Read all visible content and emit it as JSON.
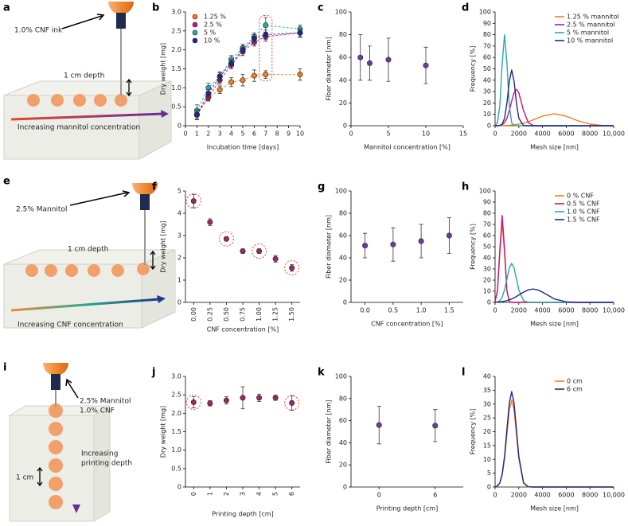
{
  "illustrations": [
    {
      "label": "a",
      "ink": "1.0% CNF ink",
      "depth": "1 cm depth",
      "gradient": "Increasing mannitol concentration"
    },
    {
      "label": "e",
      "ink": "2.5% Mannitol",
      "depth": "1 cm depth",
      "gradient": "Increasing CNF concentration"
    },
    {
      "label": "i",
      "ink": [
        "2.5% Mannitol",
        "1.0% CNF"
      ],
      "depth": "1 cm",
      "gradient": [
        "Increasing",
        "printing depth"
      ]
    }
  ],
  "chart_data": [
    {
      "label": "b",
      "type": "scatter",
      "x": [
        1,
        2,
        3,
        4,
        5,
        6,
        7,
        10
      ],
      "series": [
        {
          "name": "1.25 %",
          "color": "#f27c21",
          "values": [
            0.28,
            0.75,
            0.95,
            1.15,
            1.2,
            1.32,
            1.35,
            1.35
          ],
          "errors": [
            0.12,
            0.1,
            0.1,
            0.12,
            0.15,
            0.15,
            0.1,
            0.15
          ]
        },
        {
          "name": "2.5 %",
          "color": "#c4157b",
          "values": [
            0.3,
            0.75,
            1.2,
            1.6,
            1.95,
            2.2,
            2.35,
            2.45
          ],
          "errors": [
            0.12,
            0.08,
            0.1,
            0.1,
            0.1,
            0.1,
            0.12,
            0.12
          ]
        },
        {
          "name": "5 %",
          "color": "#2aa8a3",
          "values": [
            0.4,
            1.0,
            1.3,
            1.75,
            2.05,
            2.35,
            2.65,
            2.55
          ],
          "errors": [
            0.15,
            0.12,
            0.1,
            0.1,
            0.1,
            0.1,
            0.2,
            0.1
          ]
        },
        {
          "name": "10 %",
          "color": "#1f2a86",
          "values": [
            0.3,
            0.85,
            1.3,
            1.65,
            2.0,
            2.3,
            2.4,
            2.45
          ],
          "errors": [
            0.12,
            0.1,
            0.12,
            0.1,
            0.1,
            0.1,
            0.12,
            0.1
          ]
        }
      ],
      "xlabel": "Incubation time [days]",
      "ylabel": "Dry weight [mg]",
      "xlim": [
        0,
        10
      ],
      "xticks": [
        0,
        1,
        2,
        3,
        4,
        5,
        6,
        7,
        8,
        9,
        10
      ],
      "ylim": [
        0,
        3
      ],
      "yticks": [
        0,
        0.5,
        {
          "value": 1,
          "label": "1.0"
        },
        1.5,
        {
          "value": 2,
          "label": "2.0"
        },
        2.5,
        {
          "value": 3,
          "label": "3.0"
        }
      ],
      "legend": "upper left",
      "highlight": [
        6
      ]
    },
    {
      "label": "c",
      "type": "scatter",
      "x": [
        1.25,
        2.5,
        5,
        10
      ],
      "values": [
        60,
        55,
        58,
        53
      ],
      "errors": [
        20,
        15,
        19,
        16
      ],
      "color": "#6d3aa0",
      "xlabel": "Mannitol concentration [%]",
      "ylabel": "Fiber diameter [nm]",
      "xlim": [
        0,
        15
      ],
      "xticks": [
        0,
        5,
        10,
        15
      ],
      "ylim": [
        0,
        100
      ],
      "yticks": [
        0,
        20,
        40,
        60,
        80,
        100
      ]
    },
    {
      "label": "d",
      "type": "line",
      "x": [
        0,
        200,
        400,
        600,
        800,
        1000,
        1200,
        1400,
        1600,
        1800,
        2000,
        2400,
        2800,
        3200,
        3600,
        4000,
        5000,
        6000,
        7000,
        8000,
        9000,
        10000
      ],
      "series": [
        {
          "name": "1.25 % mannitol",
          "color": "#f27c21",
          "values": [
            0,
            0.1,
            0.1,
            0.1,
            0.2,
            0.3,
            0.4,
            0.6,
            0.8,
            1.1,
            1.4,
            2.3,
            3.6,
            5.1,
            6.8,
            8.4,
            10.5,
            8.4,
            4.3,
            1.4,
            0.3,
            0
          ]
        },
        {
          "name": "2.5 % mannitol",
          "color": "#c4157b",
          "values": [
            0,
            0.1,
            0.3,
            0.9,
            2.7,
            6.6,
            13.2,
            21.6,
            29.0,
            32,
            29.0,
            13.2,
            2.7,
            0.3,
            0,
            0,
            0,
            0,
            0,
            0,
            0,
            0
          ]
        },
        {
          "name": "5 % mannitol",
          "color": "#2aa8a3",
          "values": [
            0.2,
            2.7,
            17.6,
            54.8,
            80,
            54.8,
            17.6,
            2.7,
            0.2,
            0,
            0,
            0,
            0,
            0,
            0,
            0,
            0,
            0,
            0,
            0,
            0,
            0
          ]
        },
        {
          "name": "10 % mannitol",
          "color": "#1f2a86",
          "values": [
            0,
            0,
            0.2,
            1.4,
            6.6,
            20.1,
            39.2,
            49,
            39.2,
            20.1,
            6.6,
            0.2,
            0,
            0,
            0,
            0,
            0,
            0,
            0,
            0,
            0,
            0
          ]
        }
      ],
      "xlabel": "Mesh size [nm]",
      "ylabel": "Frequency [%]",
      "xlim": [
        0,
        10000
      ],
      "xticks": [
        0,
        2000,
        4000,
        6000,
        8000,
        {
          "value": 10000,
          "label": "10,000"
        }
      ],
      "ylim": [
        0,
        100
      ],
      "yticks": [
        0,
        10,
        20,
        30,
        40,
        50,
        60,
        70,
        80,
        90,
        100
      ],
      "legend": "upper right"
    },
    {
      "label": "f",
      "type": "scatter",
      "categories": [
        "0.00",
        "0.25",
        "0.50",
        "0.75",
        "1.00",
        "1.25",
        "1.50"
      ],
      "xtick_rotation": 90,
      "values": [
        4.55,
        3.6,
        2.85,
        2.3,
        2.3,
        1.95,
        1.55
      ],
      "errors": [
        0.3,
        0.15,
        0.1,
        0.1,
        0.1,
        0.15,
        0.15
      ],
      "color": "#9b2769",
      "xlabel": "CNF concentration [%]",
      "ylabel": "Dry weight [mg]",
      "ylim": [
        0,
        5
      ],
      "yticks": [
        0,
        1,
        2,
        3,
        4,
        5
      ],
      "highlight": [
        0,
        2,
        4,
        6
      ]
    },
    {
      "label": "g",
      "type": "scatter",
      "categories": [
        "0.0",
        "0.5",
        "1.0",
        "1.5"
      ],
      "values": [
        51,
        52,
        55,
        60
      ],
      "errors": [
        11,
        15,
        15,
        16
      ],
      "color": "#6d3aa0",
      "xlabel": "CNF concentration [%]",
      "ylabel": "Fiber diameter [nm]",
      "ylim": [
        0,
        100
      ],
      "yticks": [
        0,
        20,
        40,
        60,
        80,
        100
      ]
    },
    {
      "label": "h",
      "type": "line",
      "x": [
        0,
        200,
        400,
        600,
        800,
        1000,
        1200,
        1400,
        1600,
        1800,
        2000,
        2400,
        2800,
        3200,
        3600,
        4000,
        5000,
        6000,
        7000,
        8000,
        9000,
        10000
      ],
      "series": [
        {
          "name": "0 % CNF",
          "color": "#f27c21",
          "values": [
            0.8,
            9.7,
            43.7,
            72,
            43.7,
            9.7,
            0.8,
            0,
            0,
            0,
            0,
            0,
            0,
            0,
            0,
            0,
            0,
            0,
            0,
            0,
            0,
            0
          ]
        },
        {
          "name": "0.5 % CNF",
          "color": "#c4157b",
          "values": [
            0.9,
            10.6,
            47.3,
            78,
            47.3,
            10.6,
            0.9,
            0,
            0,
            0,
            0,
            0,
            0,
            0,
            0,
            0,
            0,
            0,
            0,
            0,
            0,
            0
          ]
        },
        {
          "name": "1.0 % CNF",
          "color": "#2aa8a3",
          "values": [
            0.1,
            0.4,
            1.5,
            4.7,
            11.4,
            21.2,
            30.9,
            35,
            30.9,
            21.2,
            11.4,
            1.5,
            0.1,
            0,
            0,
            0,
            0,
            0,
            0,
            0,
            0,
            0
          ]
        },
        {
          "name": "1.5 % CNF",
          "color": "#1f2a86",
          "values": [
            0.2,
            0.3,
            0.5,
            0.7,
            1.1,
            1.6,
            2.3,
            3.1,
            4.2,
            5.3,
            6.6,
            9.2,
            11.2,
            12,
            11.2,
            9.2,
            3.1,
            0.5,
            0,
            0,
            0,
            0
          ]
        }
      ],
      "xlabel": "Mesh size [nm]",
      "ylabel": "Frequency [%]",
      "xlim": [
        0,
        10000
      ],
      "xticks": [
        0,
        2000,
        4000,
        6000,
        8000,
        {
          "value": 10000,
          "label": "10,000"
        }
      ],
      "ylim": [
        0,
        100
      ],
      "yticks": [
        0,
        10,
        20,
        30,
        40,
        50,
        60,
        70,
        80,
        90,
        100
      ],
      "legend": "upper right"
    },
    {
      "label": "j",
      "type": "scatter",
      "categories": [
        "0",
        "1",
        "2",
        "3",
        "4",
        "5",
        "6"
      ],
      "xtick_rotation": 90,
      "values": [
        2.3,
        2.27,
        2.35,
        2.42,
        2.42,
        2.42,
        2.28
      ],
      "errors": [
        0.15,
        0.07,
        0.1,
        0.3,
        0.1,
        0.07,
        0.2
      ],
      "color": "#9b2769",
      "xlabel": "Printing depth [cm]",
      "ylabel": "Dry weight [mg]",
      "ylim": [
        0,
        3
      ],
      "yticks": [
        0,
        0.5,
        {
          "value": 1,
          "label": "1.0"
        },
        1.5,
        {
          "value": 2,
          "label": "2.0"
        },
        2.5,
        {
          "value": 3,
          "label": "3.0"
        }
      ],
      "highlight": [
        0,
        6
      ]
    },
    {
      "label": "k",
      "type": "scatter",
      "categories": [
        "0",
        "6"
      ],
      "values": [
        56,
        55.5
      ],
      "errors": [
        17,
        14.5
      ],
      "color": "#6d3aa0",
      "xlabel": "Printing depth [cm]",
      "ylabel": "Fiber diameter [nm]",
      "ylim": [
        0,
        100
      ],
      "yticks": [
        0,
        20,
        40,
        60,
        80,
        100
      ]
    },
    {
      "label": "l",
      "type": "line",
      "x": [
        0,
        200,
        400,
        600,
        800,
        1000,
        1200,
        1400,
        1600,
        1800,
        2000,
        2400,
        2800,
        3200,
        3600,
        4000,
        5000,
        6000,
        7000,
        8000,
        9000,
        10000
      ],
      "series": [
        {
          "name": "0 cm",
          "color": "#f27c21",
          "values": [
            0.1,
            0.3,
            1.4,
            4.3,
            10.2,
            19.1,
            27.8,
            31.5,
            27.8,
            19.1,
            10.2,
            1.4,
            0.1,
            0,
            0,
            0,
            0,
            0,
            0,
            0,
            0,
            0
          ]
        },
        {
          "name": "6 cm",
          "color": "#1f2a86",
          "values": [
            0.1,
            0.4,
            1.5,
            4.7,
            11.2,
            20.9,
            30.4,
            34.5,
            30.4,
            20.9,
            11.2,
            1.5,
            0.1,
            0,
            0,
            0,
            0,
            0,
            0,
            0,
            0,
            0
          ]
        }
      ],
      "xlabel": "Mesh size [nm]",
      "ylabel": "Frequency [%]",
      "xlim": [
        0,
        10000
      ],
      "xticks": [
        0,
        2000,
        4000,
        6000,
        8000,
        {
          "value": 10000,
          "label": "10,000"
        }
      ],
      "ylim": [
        0,
        40
      ],
      "yticks": [
        0,
        5,
        10,
        15,
        20,
        25,
        30,
        35,
        40
      ],
      "legend": "upper right"
    }
  ]
}
